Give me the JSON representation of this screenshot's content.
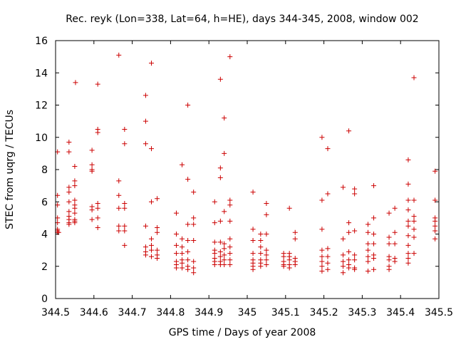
{
  "chart_data": {
    "type": "scatter",
    "title": "Rec. reyk (Lon=338, Lat=64, h=HE), days 344-345, 2008, window 002",
    "xlabel": "GPS time / Days of year 2008",
    "ylabel": "STEC from uqrg / TECUs",
    "xlim": [
      344.5,
      345.5
    ],
    "ylim": [
      0,
      16
    ],
    "grid": false,
    "legend": "none",
    "marker": "plus",
    "color": "#cc0000",
    "xticks": [
      "344.5",
      "344.6",
      "344.7",
      "344.8",
      "344.9",
      "345",
      "345.1",
      "345.2",
      "345.3",
      "345.4",
      "345.5"
    ],
    "yticks": [
      "0",
      "2",
      "4",
      "6",
      "8",
      "10",
      "12",
      "14",
      "16"
    ],
    "points": [
      [
        344.505,
        9.1
      ],
      [
        344.505,
        6.4
      ],
      [
        344.505,
        5.8
      ],
      [
        344.505,
        5.0
      ],
      [
        344.505,
        4.7
      ],
      [
        344.505,
        4.3
      ],
      [
        344.505,
        4.2
      ],
      [
        344.505,
        4.1
      ],
      [
        344.508,
        4.1
      ],
      [
        344.535,
        9.7
      ],
      [
        344.535,
        9.1
      ],
      [
        344.535,
        6.9
      ],
      [
        344.535,
        6.6
      ],
      [
        344.535,
        6.0
      ],
      [
        344.535,
        5.4
      ],
      [
        344.535,
        5.1
      ],
      [
        344.535,
        4.9
      ],
      [
        344.535,
        4.7
      ],
      [
        344.535,
        4.6
      ],
      [
        344.55,
        8.2
      ],
      [
        344.55,
        7.3
      ],
      [
        344.55,
        7.0
      ],
      [
        344.55,
        6.1
      ],
      [
        344.55,
        5.8
      ],
      [
        344.55,
        5.6
      ],
      [
        344.55,
        5.3
      ],
      [
        344.55,
        4.9
      ],
      [
        344.55,
        4.8
      ],
      [
        344.55,
        4.7
      ],
      [
        344.552,
        13.4
      ],
      [
        344.595,
        9.2
      ],
      [
        344.595,
        8.3
      ],
      [
        344.595,
        8.0
      ],
      [
        344.595,
        7.9
      ],
      [
        344.595,
        5.7
      ],
      [
        344.595,
        5.5
      ],
      [
        344.595,
        4.9
      ],
      [
        344.61,
        13.3
      ],
      [
        344.61,
        10.5
      ],
      [
        344.61,
        10.3
      ],
      [
        344.61,
        5.9
      ],
      [
        344.61,
        5.6
      ],
      [
        344.61,
        5.0
      ],
      [
        344.61,
        4.4
      ],
      [
        344.665,
        15.1
      ],
      [
        344.665,
        7.3
      ],
      [
        344.665,
        6.4
      ],
      [
        344.665,
        5.6
      ],
      [
        344.665,
        4.5
      ],
      [
        344.665,
        4.2
      ],
      [
        344.68,
        10.5
      ],
      [
        344.68,
        9.6
      ],
      [
        344.68,
        5.9
      ],
      [
        344.68,
        5.6
      ],
      [
        344.68,
        4.5
      ],
      [
        344.68,
        4.2
      ],
      [
        344.68,
        3.3
      ],
      [
        344.735,
        12.6
      ],
      [
        344.735,
        11.0
      ],
      [
        344.735,
        9.6
      ],
      [
        344.735,
        4.5
      ],
      [
        344.735,
        3.2
      ],
      [
        344.735,
        2.9
      ],
      [
        344.735,
        2.7
      ],
      [
        344.75,
        14.6
      ],
      [
        344.75,
        9.3
      ],
      [
        344.75,
        6.0
      ],
      [
        344.75,
        3.7
      ],
      [
        344.75,
        3.3
      ],
      [
        344.75,
        3.0
      ],
      [
        344.75,
        2.6
      ],
      [
        344.765,
        6.2
      ],
      [
        344.765,
        4.4
      ],
      [
        344.765,
        4.1
      ],
      [
        344.765,
        3.0
      ],
      [
        344.765,
        2.7
      ],
      [
        344.765,
        2.5
      ],
      [
        344.815,
        5.3
      ],
      [
        344.815,
        4.0
      ],
      [
        344.815,
        3.3
      ],
      [
        344.815,
        2.8
      ],
      [
        344.815,
        2.3
      ],
      [
        344.815,
        2.1
      ],
      [
        344.815,
        1.9
      ],
      [
        344.83,
        8.3
      ],
      [
        344.83,
        3.7
      ],
      [
        344.83,
        3.2
      ],
      [
        344.83,
        2.8
      ],
      [
        344.83,
        2.4
      ],
      [
        344.83,
        2.2
      ],
      [
        344.83,
        1.9
      ],
      [
        344.845,
        12.0
      ],
      [
        344.845,
        7.4
      ],
      [
        344.845,
        4.6
      ],
      [
        344.845,
        3.6
      ],
      [
        344.845,
        2.9
      ],
      [
        344.845,
        2.4
      ],
      [
        344.845,
        2.0
      ],
      [
        344.845,
        1.8
      ],
      [
        344.86,
        6.6
      ],
      [
        344.86,
        5.0
      ],
      [
        344.86,
        4.6
      ],
      [
        344.86,
        3.6
      ],
      [
        344.86,
        2.3
      ],
      [
        344.86,
        1.9
      ],
      [
        344.86,
        1.6
      ],
      [
        344.915,
        6.0
      ],
      [
        344.915,
        4.7
      ],
      [
        344.915,
        3.5
      ],
      [
        344.915,
        3.0
      ],
      [
        344.915,
        2.8
      ],
      [
        344.915,
        2.5
      ],
      [
        344.915,
        2.3
      ],
      [
        344.915,
        2.1
      ],
      [
        344.93,
        13.6
      ],
      [
        344.93,
        8.1
      ],
      [
        344.93,
        7.5
      ],
      [
        344.93,
        4.8
      ],
      [
        344.93,
        3.5
      ],
      [
        344.93,
        2.9
      ],
      [
        344.93,
        2.6
      ],
      [
        344.93,
        2.3
      ],
      [
        344.93,
        2.1
      ],
      [
        344.94,
        11.2
      ],
      [
        344.94,
        9.0
      ],
      [
        344.94,
        5.4
      ],
      [
        344.94,
        3.4
      ],
      [
        344.94,
        3.1
      ],
      [
        344.94,
        2.7
      ],
      [
        344.94,
        2.4
      ],
      [
        344.94,
        2.1
      ],
      [
        344.955,
        15.0
      ],
      [
        344.955,
        6.1
      ],
      [
        344.955,
        5.8
      ],
      [
        344.955,
        4.8
      ],
      [
        344.955,
        3.7
      ],
      [
        344.955,
        3.2
      ],
      [
        344.955,
        2.8
      ],
      [
        344.955,
        2.4
      ],
      [
        344.955,
        2.1
      ],
      [
        345.015,
        6.6
      ],
      [
        345.015,
        4.3
      ],
      [
        345.015,
        3.6
      ],
      [
        345.015,
        2.8
      ],
      [
        345.015,
        2.4
      ],
      [
        345.015,
        2.2
      ],
      [
        345.015,
        2.0
      ],
      [
        345.015,
        1.8
      ],
      [
        345.035,
        4.0
      ],
      [
        345.035,
        3.6
      ],
      [
        345.035,
        3.2
      ],
      [
        345.035,
        2.8
      ],
      [
        345.035,
        2.4
      ],
      [
        345.035,
        2.2
      ],
      [
        345.035,
        2.0
      ],
      [
        345.05,
        5.9
      ],
      [
        345.05,
        5.2
      ],
      [
        345.05,
        4.0
      ],
      [
        345.05,
        3.0
      ],
      [
        345.05,
        2.7
      ],
      [
        345.05,
        2.4
      ],
      [
        345.05,
        2.1
      ],
      [
        345.095,
        2.8
      ],
      [
        345.095,
        2.6
      ],
      [
        345.095,
        2.3
      ],
      [
        345.095,
        2.1
      ],
      [
        345.095,
        2.0
      ],
      [
        345.11,
        5.6
      ],
      [
        345.11,
        2.8
      ],
      [
        345.11,
        2.6
      ],
      [
        345.11,
        2.4
      ],
      [
        345.11,
        2.1
      ],
      [
        345.11,
        1.9
      ],
      [
        345.125,
        4.1
      ],
      [
        345.125,
        3.7
      ],
      [
        345.125,
        2.5
      ],
      [
        345.125,
        2.3
      ],
      [
        345.125,
        2.1
      ],
      [
        345.195,
        10.0
      ],
      [
        345.195,
        6.1
      ],
      [
        345.195,
        4.3
      ],
      [
        345.195,
        3.0
      ],
      [
        345.195,
        2.6
      ],
      [
        345.195,
        2.3
      ],
      [
        345.195,
        2.0
      ],
      [
        345.195,
        1.7
      ],
      [
        345.21,
        9.3
      ],
      [
        345.21,
        6.5
      ],
      [
        345.21,
        3.1
      ],
      [
        345.21,
        2.6
      ],
      [
        345.21,
        2.2
      ],
      [
        345.21,
        1.8
      ],
      [
        345.25,
        6.9
      ],
      [
        345.25,
        3.7
      ],
      [
        345.25,
        2.7
      ],
      [
        345.25,
        2.3
      ],
      [
        345.25,
        2.0
      ],
      [
        345.25,
        1.6
      ],
      [
        345.265,
        10.4
      ],
      [
        345.265,
        4.7
      ],
      [
        345.265,
        4.1
      ],
      [
        345.265,
        2.9
      ],
      [
        345.265,
        2.4
      ],
      [
        345.265,
        2.1
      ],
      [
        345.265,
        1.9
      ],
      [
        345.28,
        6.8
      ],
      [
        345.28,
        6.5
      ],
      [
        345.28,
        4.2
      ],
      [
        345.28,
        2.7
      ],
      [
        345.28,
        2.4
      ],
      [
        345.28,
        1.9
      ],
      [
        345.28,
        1.8
      ],
      [
        345.315,
        4.6
      ],
      [
        345.315,
        4.1
      ],
      [
        345.315,
        3.4
      ],
      [
        345.315,
        3.0
      ],
      [
        345.315,
        2.6
      ],
      [
        345.315,
        2.3
      ],
      [
        345.315,
        1.7
      ],
      [
        345.33,
        7.0
      ],
      [
        345.33,
        5.0
      ],
      [
        345.33,
        4.0
      ],
      [
        345.33,
        3.4
      ],
      [
        345.33,
        2.7
      ],
      [
        345.33,
        2.5
      ],
      [
        345.33,
        1.8
      ],
      [
        345.37,
        5.3
      ],
      [
        345.37,
        3.8
      ],
      [
        345.37,
        3.4
      ],
      [
        345.37,
        2.6
      ],
      [
        345.37,
        2.4
      ],
      [
        345.37,
        2.0
      ],
      [
        345.37,
        1.8
      ],
      [
        345.385,
        5.6
      ],
      [
        345.385,
        4.1
      ],
      [
        345.385,
        3.4
      ],
      [
        345.385,
        2.5
      ],
      [
        345.385,
        2.3
      ],
      [
        345.42,
        8.6
      ],
      [
        345.42,
        7.1
      ],
      [
        345.42,
        6.1
      ],
      [
        345.42,
        5.5
      ],
      [
        345.42,
        4.8
      ],
      [
        345.42,
        4.5
      ],
      [
        345.42,
        3.9
      ],
      [
        345.42,
        3.3
      ],
      [
        345.42,
        2.8
      ],
      [
        345.42,
        2.5
      ],
      [
        345.42,
        2.2
      ],
      [
        345.435,
        13.7
      ],
      [
        345.435,
        6.1
      ],
      [
        345.435,
        5.1
      ],
      [
        345.435,
        4.8
      ],
      [
        345.435,
        4.3
      ],
      [
        345.435,
        3.8
      ],
      [
        345.435,
        2.8
      ],
      [
        345.49,
        7.9
      ],
      [
        345.49,
        6.1
      ],
      [
        345.49,
        5.0
      ],
      [
        345.49,
        4.8
      ],
      [
        345.49,
        4.5
      ],
      [
        345.49,
        4.2
      ],
      [
        345.49,
        3.7
      ]
    ]
  }
}
